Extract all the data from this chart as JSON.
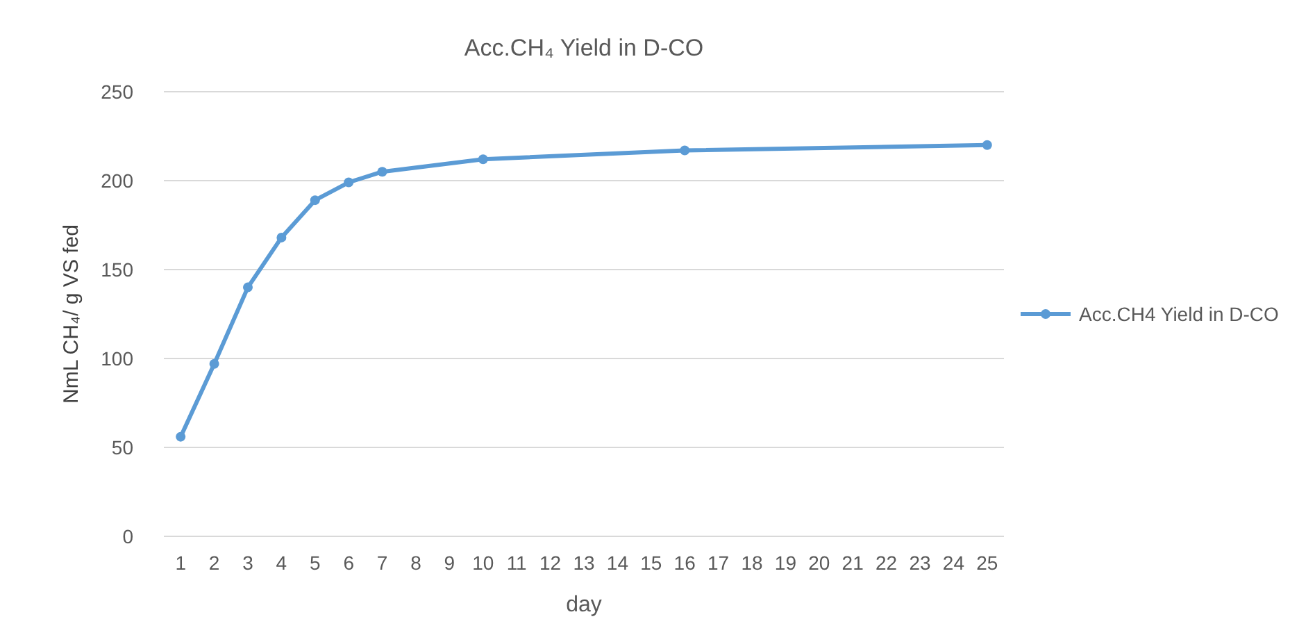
{
  "chart_data": {
    "type": "line",
    "title": "Acc.CH₄ Yield in D-CO",
    "xlabel": "day",
    "ylabel": "NmL CH₄/ g VS fed",
    "x": [
      1,
      2,
      3,
      4,
      5,
      6,
      7,
      10,
      16,
      25
    ],
    "series": [
      {
        "name": "Acc.CH4 Yield in D-CO",
        "color": "#5b9bd5",
        "values": [
          56,
          97,
          140,
          168,
          189,
          199,
          205,
          212,
          217,
          220
        ]
      }
    ],
    "xlim": [
      0.5,
      25.5
    ],
    "xticks": [
      1,
      2,
      3,
      4,
      5,
      6,
      7,
      8,
      9,
      10,
      11,
      12,
      13,
      14,
      15,
      16,
      17,
      18,
      19,
      20,
      21,
      22,
      23,
      24,
      25
    ],
    "ylim": [
      0,
      250
    ],
    "yticks": [
      0,
      50,
      100,
      150,
      200,
      250
    ],
    "grid": "y",
    "legend": "right",
    "marker": "circle",
    "line_style": "solid"
  }
}
